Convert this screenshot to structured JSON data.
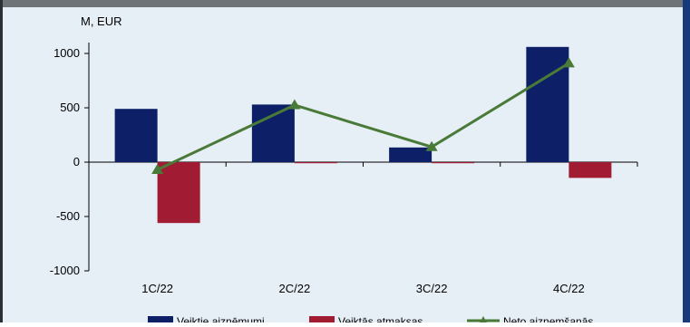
{
  "chart_data": {
    "type": "bar",
    "title": "",
    "unit_label": "M, EUR",
    "categories": [
      "1C/22",
      "2C/22",
      "3C/22",
      "4C/22"
    ],
    "y_ticks": [
      "1000",
      "500",
      "0",
      "-500",
      "-1000"
    ],
    "ylim": [
      -1000,
      1100
    ],
    "series": [
      {
        "name": "Veiktie aizņēmumi",
        "type": "bar",
        "color": "#0d1f66",
        "values": [
          490,
          530,
          135,
          1060
        ]
      },
      {
        "name": "Veiktās atmaksas",
        "type": "bar",
        "color": "#a11c33",
        "values": [
          -560,
          -5,
          -5,
          -145
        ]
      },
      {
        "name": "Neto aizņemšanās",
        "type": "line",
        "color": "#4a7a38",
        "marker": "triangle",
        "values": [
          -70,
          525,
          140,
          910
        ]
      }
    ],
    "legend_position": "bottom",
    "grid": false
  }
}
